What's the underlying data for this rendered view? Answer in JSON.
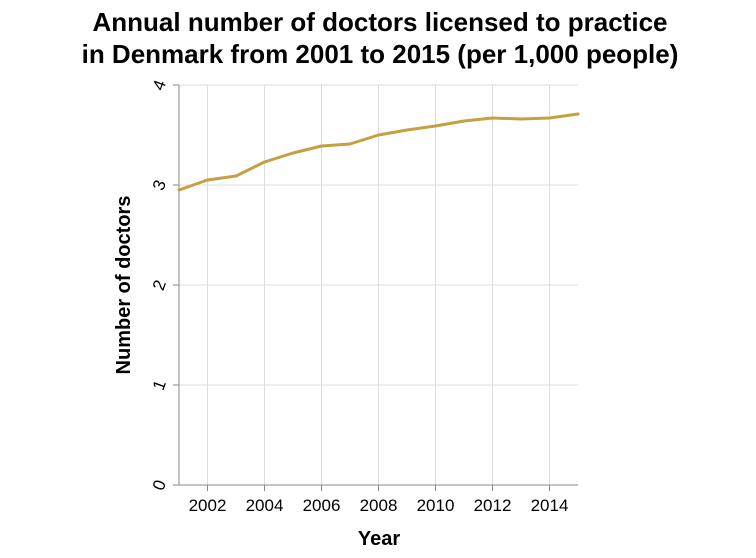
{
  "chart_data": {
    "type": "line",
    "title": "Annual number of doctors licensed to practice in Denmark from 2001 to 2015 (per 1,000 people)",
    "title_lines": [
      "Annual number of doctors licensed to practice",
      "in Denmark from 2001 to 2015 (per 1,000 people)"
    ],
    "xlabel": "Year",
    "ylabel": "Number of doctors",
    "xlim": [
      2001,
      2015
    ],
    "ylim": [
      0,
      4
    ],
    "x_ticks": [
      2002,
      2004,
      2006,
      2008,
      2010,
      2012,
      2014
    ],
    "y_ticks": [
      0,
      1,
      2,
      3,
      4
    ],
    "grid": true,
    "series": [
      {
        "color": "#c4a040",
        "x": [
          2001,
          2002,
          2003,
          2004,
          2005,
          2006,
          2007,
          2008,
          2009,
          2010,
          2011,
          2012,
          2013,
          2014,
          2015
        ],
        "values": [
          2.95,
          3.05,
          3.09,
          3.23,
          3.32,
          3.39,
          3.41,
          3.5,
          3.55,
          3.59,
          3.64,
          3.67,
          3.66,
          3.67,
          3.71
        ]
      }
    ]
  }
}
